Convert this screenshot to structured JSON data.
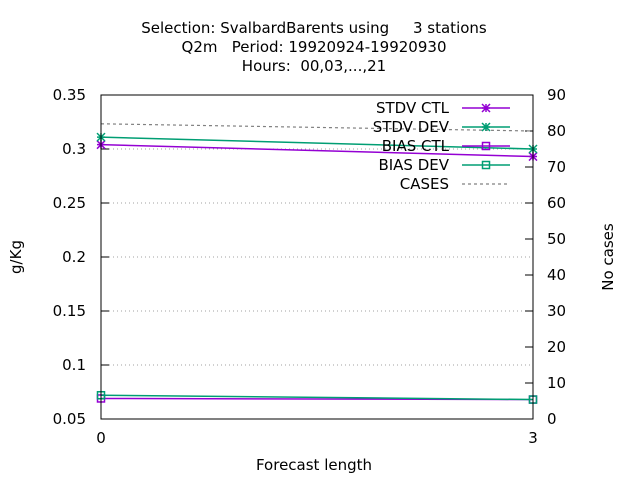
{
  "chart_data": {
    "type": "line",
    "title_lines": [
      "Selection: SvalbardBarents using     3 stations",
      "Q2m   Period: 19920924-19920930",
      "Hours:  00,03,...,21"
    ],
    "xlabel": "Forecast length",
    "ylabel": "g/Kg",
    "y2label": "No cases",
    "x_ticks": [
      "0",
      "3"
    ],
    "xlim": [
      0,
      3
    ],
    "ylim": [
      0.05,
      0.35
    ],
    "y_ticks": [
      "0.05",
      "0.1",
      "0.15",
      "0.2",
      "0.25",
      "0.3",
      "0.35"
    ],
    "y2lim": [
      0,
      90
    ],
    "y2_ticks": [
      "0",
      "10",
      "20",
      "30",
      "40",
      "50",
      "60",
      "70",
      "80",
      "90"
    ],
    "grid": "horizontal dotted",
    "legend_position": "top-right",
    "x": [
      0,
      3
    ],
    "series": [
      {
        "name": "STDV CTL",
        "axis": "y",
        "values": [
          0.304,
          0.293
        ],
        "color": "#9400d3",
        "marker": "star"
      },
      {
        "name": "STDV DEV",
        "axis": "y",
        "values": [
          0.311,
          0.3
        ],
        "color": "#009e73",
        "marker": "star"
      },
      {
        "name": "BIAS CTL",
        "axis": "y",
        "values": [
          0.069,
          0.068
        ],
        "color": "#9400d3",
        "marker": "square"
      },
      {
        "name": "BIAS DEV",
        "axis": "y",
        "values": [
          0.072,
          0.068
        ],
        "color": "#009e73",
        "marker": "square"
      },
      {
        "name": "CASES",
        "axis": "y2",
        "values": [
          82,
          80
        ],
        "color": "#808080",
        "marker": "none",
        "dash": true
      }
    ]
  }
}
